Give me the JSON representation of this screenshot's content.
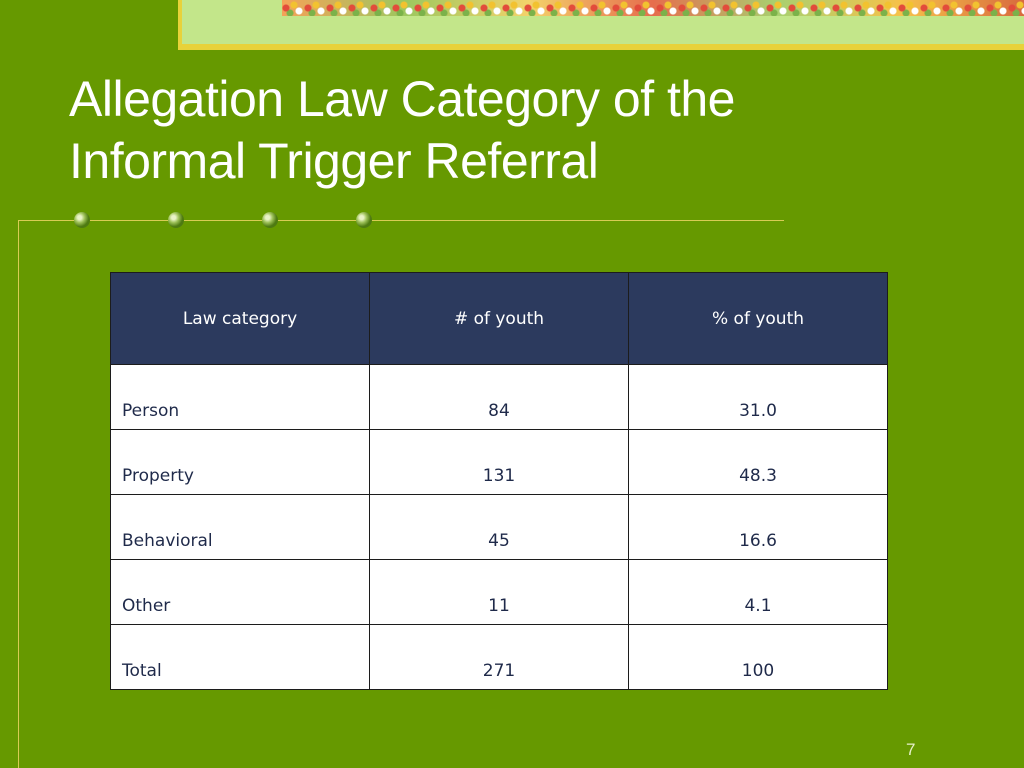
{
  "slide": {
    "title_line1": "Allegation Law Category of the",
    "title_line2": "Informal Trigger Referral",
    "page_number": "7"
  },
  "table": {
    "headers": [
      "Law category",
      "# of youth",
      "% of youth"
    ],
    "rows": [
      [
        "Person",
        "84",
        "31.0"
      ],
      [
        "Property",
        "131",
        "48.3"
      ],
      [
        "Behavioral",
        "45",
        "16.6"
      ],
      [
        "Other",
        "11",
        "4.1"
      ],
      [
        "Total",
        "271",
        "100"
      ]
    ]
  },
  "colors": {
    "background": "#669900",
    "table_header": "#2c3a5e",
    "accent_line": "#d8cc54"
  }
}
